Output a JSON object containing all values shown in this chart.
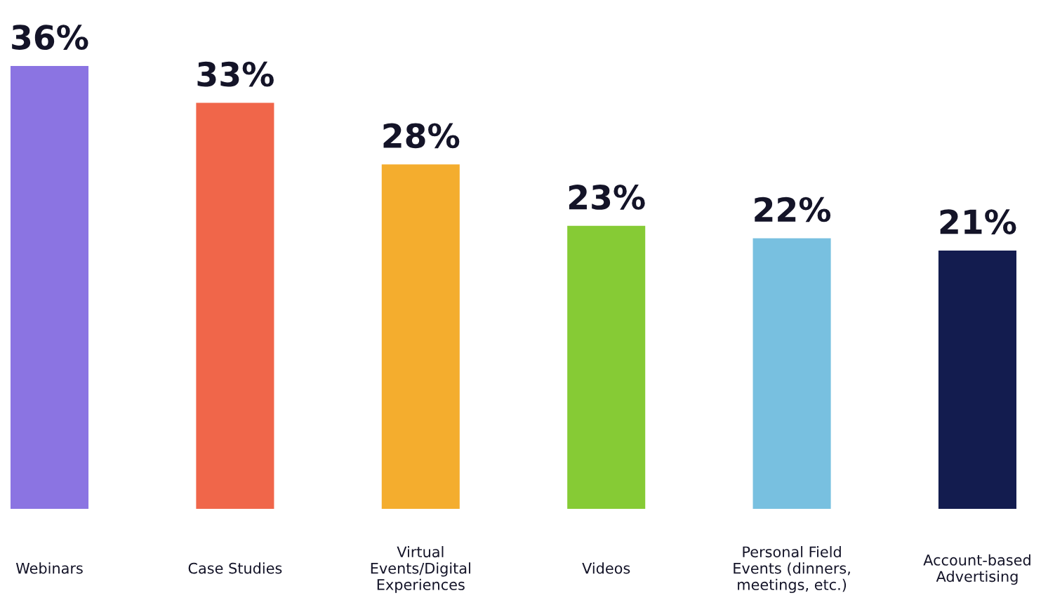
{
  "chart_data": {
    "type": "bar",
    "categories": [
      "Webinars",
      "Case Studies",
      "Virtual\nEvents/Digital\nExperiences",
      "Videos",
      "Personal Field\nEvents (dinners,\nmeetings, etc.)",
      "Account-based\nAdvertising"
    ],
    "values": [
      36,
      33,
      28,
      23,
      22,
      21
    ],
    "colors": [
      "#8b74e2",
      "#f0664a",
      "#f4ad2e",
      "#86cb35",
      "#78c0e0",
      "#131c4f"
    ],
    "value_labels": [
      "36%",
      "33%",
      "28%",
      "23%",
      "22%",
      "21%"
    ]
  }
}
